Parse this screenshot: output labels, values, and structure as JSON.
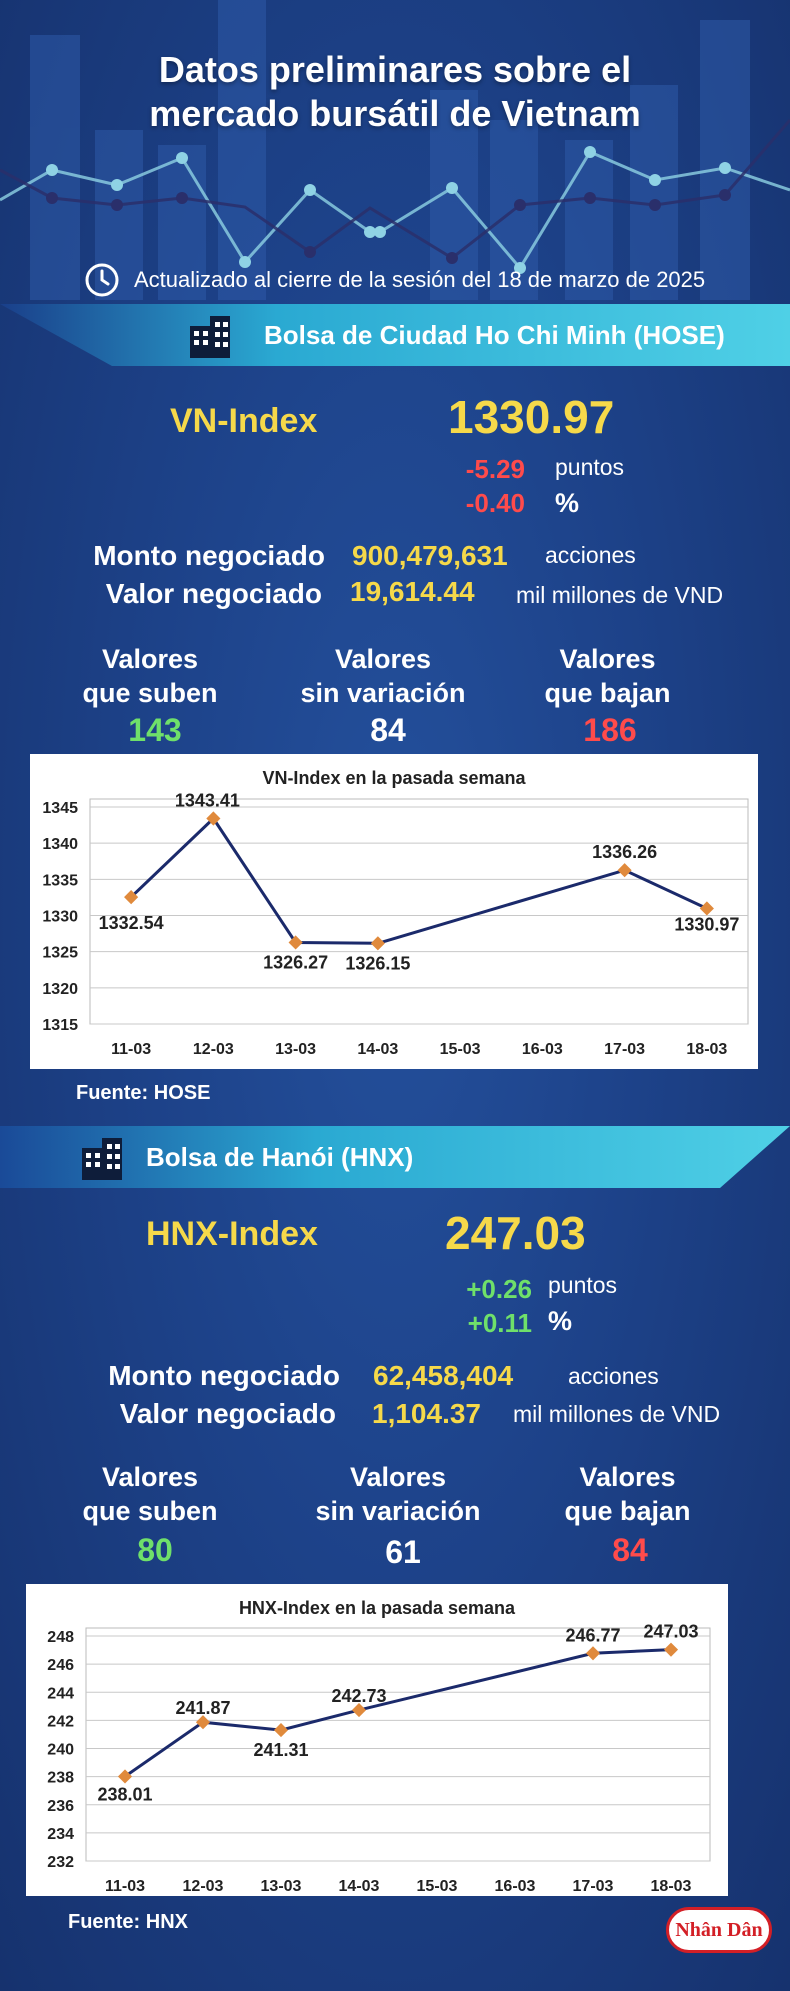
{
  "header": {
    "title_line1": "Datos preliminares sobre el",
    "title_line2": "mercado bursátil de Vietnam",
    "updated": "Actualizado al cierre de la sesión del 18 de marzo de 2025"
  },
  "hose": {
    "banner": "Bolsa de Ciudad Ho Chi Minh (HOSE)",
    "index_label": "VN-Index",
    "index_value": "1330.97",
    "change_points": "-5.29",
    "change_points_unit": "puntos",
    "change_pct": "-0.40",
    "change_pct_unit": "%",
    "volume_label": "Monto negociado",
    "volume_value": "900,479,631",
    "volume_unit": "acciones",
    "value_label": "Valor negociado",
    "value_value": "19,614.44",
    "value_unit": "mil millones de VND",
    "up_line1": "Valores",
    "up_line2": "que suben",
    "up_count": "143",
    "flat_line1": "Valores",
    "flat_line2": "sin variación",
    "flat_count": "84",
    "down_line1": "Valores",
    "down_line2": "que bajan",
    "down_count": "186",
    "source": "Fuente: HOSE"
  },
  "hnx": {
    "banner": "Bolsa de Hanói (HNX)",
    "index_label": "HNX-Index",
    "index_value": "247.03",
    "change_points": "+0.26",
    "change_points_unit": "puntos",
    "change_pct": "+0.11",
    "change_pct_unit": "%",
    "volume_label": "Monto negociado",
    "volume_value": "62,458,404",
    "volume_unit": "acciones",
    "value_label": "Valor negociado",
    "value_value": "1,104.37",
    "value_unit": "mil millones de VND",
    "up_line1": "Valores",
    "up_line2": "que suben",
    "up_count": "80",
    "flat_line1": "Valores",
    "flat_line2": "sin variación",
    "flat_count": "61",
    "down_line1": "Valores",
    "down_line2": "que bajan",
    "down_count": "84",
    "source": "Fuente:  HNX"
  },
  "logo_text": "Nhân Dân",
  "colors": {
    "background": "#1d4289",
    "accent_yellow": "#f6d94a",
    "up_green": "#6fe06a",
    "down_red": "#ff4b4b",
    "banner_cyan": "#3fc4de",
    "chart_line": "#1b2a6b",
    "chart_marker": "#e08a3c"
  },
  "icons": [
    "clock-icon",
    "building-icon"
  ],
  "chart_data": [
    {
      "type": "line",
      "title": "VN-Index en la pasada semana",
      "categories": [
        "11-03",
        "12-03",
        "13-03",
        "14-03",
        "15-03",
        "16-03",
        "17-03",
        "18-03"
      ],
      "points": [
        {
          "x": "11-03",
          "y": 1332.54,
          "label": "1332.54"
        },
        {
          "x": "12-03",
          "y": 1343.41,
          "label": "1343.41"
        },
        {
          "x": "13-03",
          "y": 1326.27,
          "label": "1326.27"
        },
        {
          "x": "14-03",
          "y": 1326.15,
          "label": "1326.15"
        },
        {
          "x": "17-03",
          "y": 1336.26,
          "label": "1336.26"
        },
        {
          "x": "18-03",
          "y": 1330.97,
          "label": "1330.97"
        }
      ],
      "yticks": [
        "1345",
        "1340",
        "1335",
        "1330",
        "1325",
        "1320",
        "1315"
      ],
      "ylim": [
        1315,
        1345
      ],
      "grid": true
    },
    {
      "type": "line",
      "title": "HNX-Index en la pasada semana",
      "categories": [
        "11-03",
        "12-03",
        "13-03",
        "14-03",
        "15-03",
        "16-03",
        "17-03",
        "18-03"
      ],
      "points": [
        {
          "x": "11-03",
          "y": 238.01,
          "label": "238.01"
        },
        {
          "x": "12-03",
          "y": 241.87,
          "label": "241.87"
        },
        {
          "x": "13-03",
          "y": 241.31,
          "label": "241.31"
        },
        {
          "x": "14-03",
          "y": 242.73,
          "label": "242.73"
        },
        {
          "x": "17-03",
          "y": 246.77,
          "label": "246.77"
        },
        {
          "x": "18-03",
          "y": 247.03,
          "label": "247.03"
        }
      ],
      "yticks": [
        "248",
        "246",
        "244",
        "242",
        "240",
        "238",
        "236",
        "234",
        "232"
      ],
      "ylim": [
        232,
        248
      ],
      "grid": true
    }
  ]
}
